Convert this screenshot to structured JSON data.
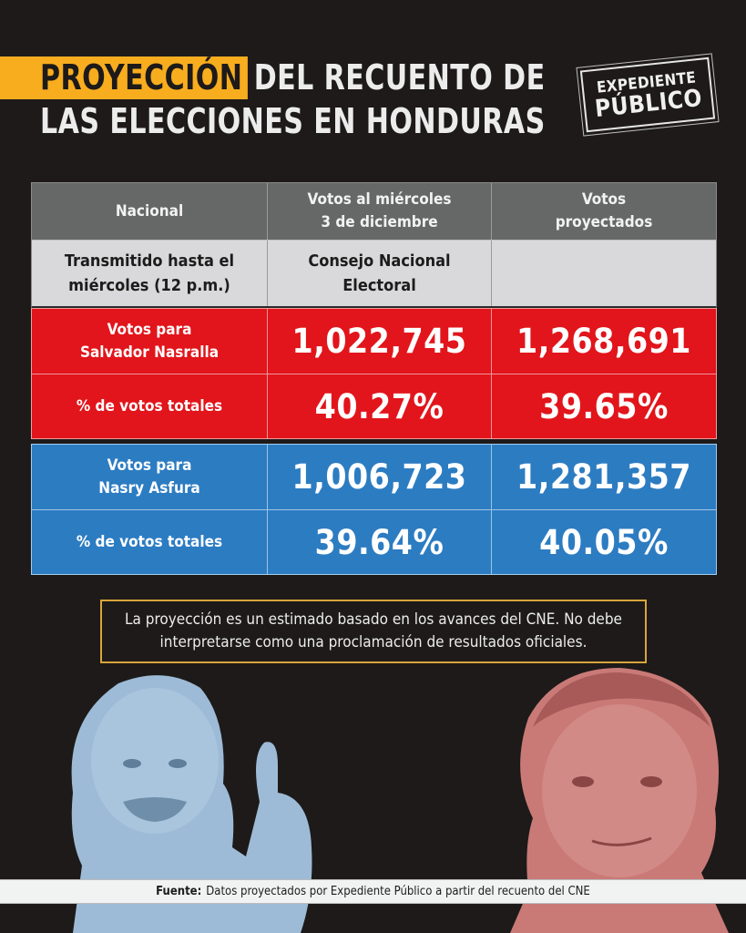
{
  "header": {
    "title_highlight": "PROYECCIÓN",
    "title_line1_rest": "DEL RECUENTO DE",
    "title_line2": "LAS ELECCIONES EN HONDURAS",
    "highlight_color": "#f8ad1f"
  },
  "logo": {
    "line1": "EXPEDIENTE",
    "line2": "PÚBLICO"
  },
  "table": {
    "columns": [
      "Nacional",
      "Votos al miércoles\n3 de diciembre",
      "Votos\nproyectados"
    ],
    "subheader": [
      "Transmitido hasta el\nmiércoles (12 p.m.)",
      "Consejo Nacional\nElectoral",
      ""
    ],
    "candidates": [
      {
        "color": "#e1151b",
        "votes_label": "Votos para\nSalvador Nasralla",
        "votes_current": "1,022,745",
        "votes_projected": "1,268,691",
        "pct_label": "% de votos totales",
        "pct_current": "40.27%",
        "pct_projected": "39.65%"
      },
      {
        "color": "#2c7cc2",
        "votes_label": "Votos para\nNasry Asfura",
        "votes_current": "1,006,723",
        "votes_projected": "1,281,357",
        "pct_label": "% de votos totales",
        "pct_current": "39.64%",
        "pct_projected": "40.05%"
      }
    ]
  },
  "note": "La proyección es un estimado basado en los avances del CNE. No debe interpretarse como una proclamación de resultados oficiales.",
  "source": {
    "label": "Fuente:",
    "text": "Datos proyectados por Expediente Público a partir del recuento del CNE"
  },
  "portraits": {
    "left": {
      "tint": "#9dbbd6"
    },
    "right": {
      "tint": "#c97a77"
    }
  }
}
